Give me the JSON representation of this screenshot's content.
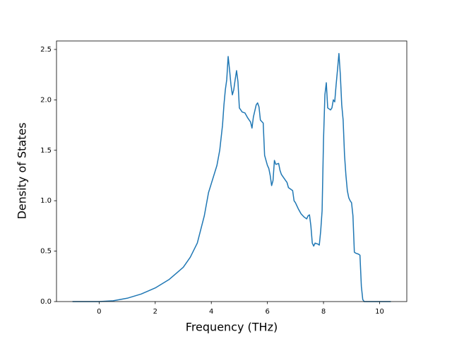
{
  "chart_data": {
    "type": "line",
    "x_label": "Frequency (THz)",
    "y_label": "Density of States",
    "x": [
      -0.95,
      0,
      0.5,
      1,
      1.5,
      2,
      2.5,
      3,
      3.25,
      3.5,
      3.75,
      3.9,
      4.0,
      4.2,
      4.3,
      4.4,
      4.45,
      4.5,
      4.55,
      4.6,
      4.65,
      4.7,
      4.75,
      4.8,
      4.85,
      4.9,
      4.95,
      5.0,
      5.1,
      5.2,
      5.3,
      5.4,
      5.45,
      5.5,
      5.6,
      5.65,
      5.7,
      5.75,
      5.85,
      5.9,
      6.0,
      6.05,
      6.1,
      6.15,
      6.2,
      6.25,
      6.3,
      6.4,
      6.45,
      6.5,
      6.6,
      6.7,
      6.75,
      6.9,
      6.95,
      7.0,
      7.1,
      7.2,
      7.3,
      7.4,
      7.45,
      7.5,
      7.55,
      7.6,
      7.65,
      7.7,
      7.8,
      7.85,
      7.9,
      7.95,
      8.0,
      8.05,
      8.1,
      8.15,
      8.25,
      8.3,
      8.35,
      8.4,
      8.45,
      8.5,
      8.55,
      8.6,
      8.65,
      8.7,
      8.75,
      8.8,
      8.85,
      8.9,
      8.95,
      9.0,
      9.05,
      9.1,
      9.15,
      9.25,
      9.3,
      9.35,
      9.4,
      9.45,
      10.4
    ],
    "series": [
      {
        "color": "#1f77b4",
        "values": [
          0,
          0,
          0.008,
          0.033,
          0.075,
          0.135,
          0.22,
          0.34,
          0.44,
          0.58,
          0.85,
          1.08,
          1.17,
          1.35,
          1.5,
          1.75,
          1.95,
          2.1,
          2.2,
          2.43,
          2.3,
          2.15,
          2.05,
          2.1,
          2.2,
          2.29,
          2.18,
          1.92,
          1.88,
          1.87,
          1.82,
          1.78,
          1.72,
          1.83,
          1.95,
          1.97,
          1.93,
          1.8,
          1.77,
          1.45,
          1.35,
          1.32,
          1.25,
          1.15,
          1.2,
          1.4,
          1.36,
          1.37,
          1.3,
          1.26,
          1.22,
          1.18,
          1.13,
          1.1,
          1.0,
          0.98,
          0.92,
          0.87,
          0.84,
          0.82,
          0.85,
          0.86,
          0.75,
          0.58,
          0.55,
          0.58,
          0.57,
          0.56,
          0.7,
          0.9,
          1.6,
          2.05,
          2.17,
          1.92,
          1.9,
          1.92,
          2.0,
          1.98,
          2.15,
          2.3,
          2.46,
          2.25,
          1.95,
          1.8,
          1.45,
          1.25,
          1.1,
          1.03,
          1.0,
          0.98,
          0.85,
          0.49,
          0.48,
          0.47,
          0.46,
          0.15,
          0.02,
          0,
          0
        ]
      }
    ],
    "xlim": [
      -1.52,
      10.97
    ],
    "xticks": [
      0,
      2,
      4,
      6,
      8,
      10
    ],
    "ylim": [
      0,
      2.584
    ],
    "yticks": [
      {
        "value": 0,
        "label": "0.0"
      },
      {
        "value": 0.5,
        "label": "0.5"
      },
      {
        "value": 1,
        "label": "1.0"
      },
      {
        "value": 1.5,
        "label": "1.5"
      },
      {
        "value": 2,
        "label": "2.0"
      },
      {
        "value": 2.5,
        "label": "2.5"
      }
    ],
    "grid": false
  }
}
